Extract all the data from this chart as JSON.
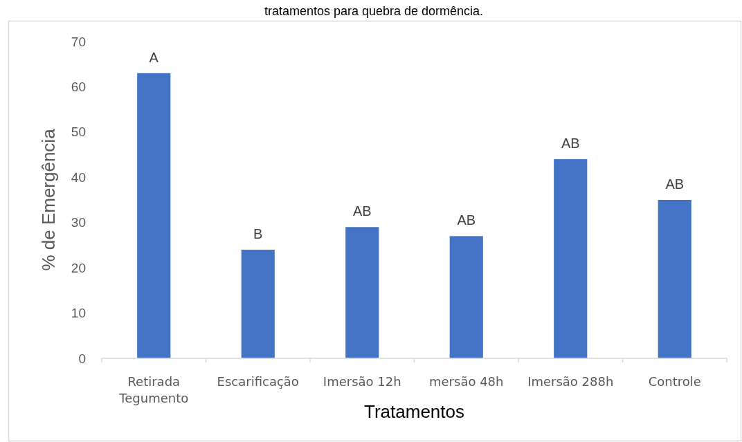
{
  "chart_data": {
    "type": "bar",
    "title": "tratamentos para quebra de dormência.",
    "xlabel": "Tratamentos",
    "ylabel": "% de Emergência",
    "categories": [
      "Retirada Tegumento",
      "Escarificação",
      "Imersão 12h",
      "mersão 48h",
      "Imersão 288h",
      "Controle"
    ],
    "values": [
      63,
      24,
      29,
      27,
      44,
      35
    ],
    "color": "#4472c4",
    "value_labels": [
      "A",
      "B",
      "AB",
      "AB",
      "AB",
      "AB"
    ],
    "ylim": [
      0,
      70
    ],
    "yticks": [
      0,
      10,
      20,
      30,
      40,
      50,
      60,
      70
    ],
    "grid": false
  }
}
